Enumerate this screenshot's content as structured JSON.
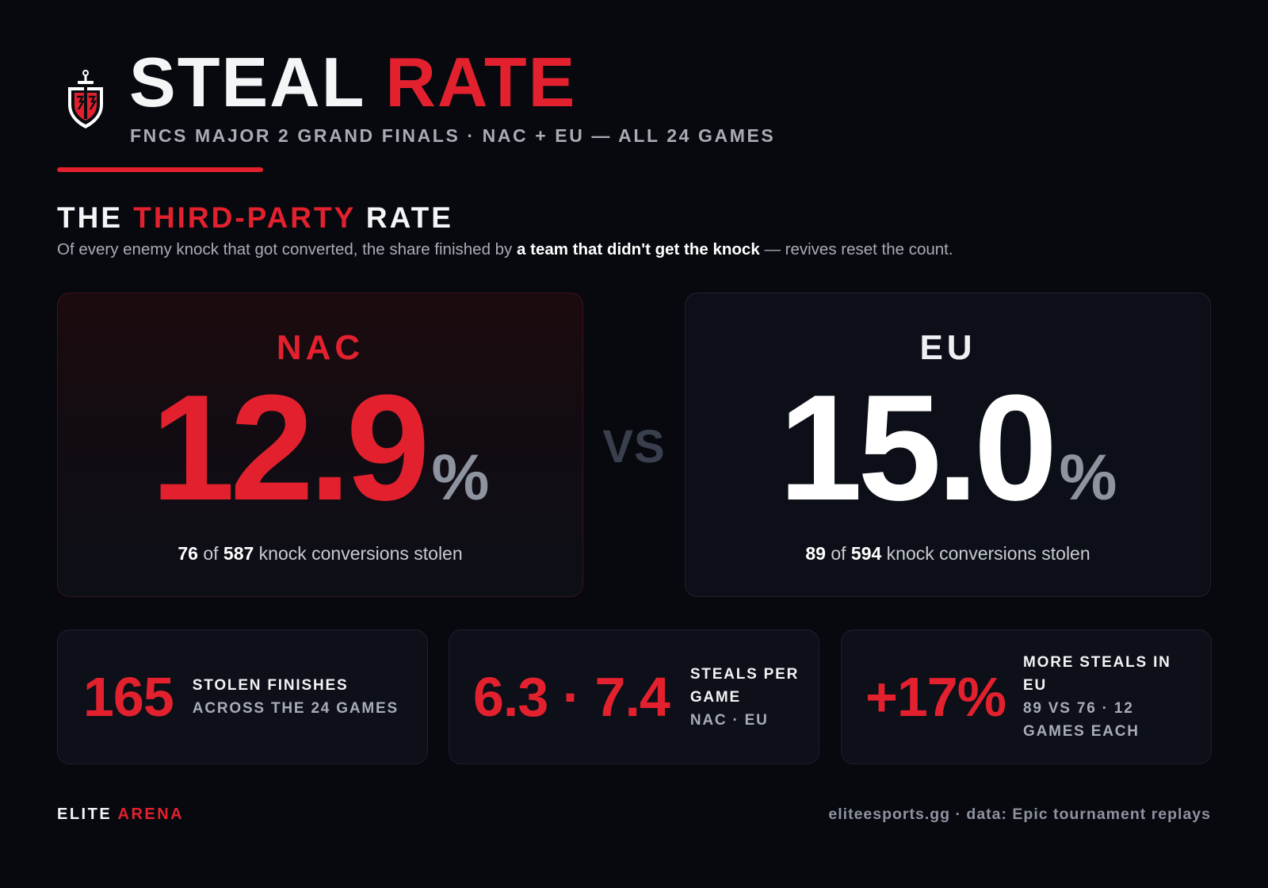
{
  "header": {
    "title_part1": "STEAL",
    "title_part2": "RATE",
    "subtitle": "FNCS MAJOR 2 GRAND FINALS · NAC + EU — ALL 24 GAMES"
  },
  "section": {
    "title_part1": "THE",
    "title_part2": "THIRD-PARTY",
    "title_part3": "RATE",
    "desc_before": "Of every enemy knock that got converted, the share finished by ",
    "desc_bold": "a team that didn't get the knock",
    "desc_after": " — revives reset the count."
  },
  "comparison": {
    "vs_label": "VS",
    "nac": {
      "region": "NAC",
      "rate": "12.9",
      "pct_sign": "%",
      "stolen": "76",
      "of_word": " of ",
      "total": "587",
      "note_suffix": " knock conversions stolen"
    },
    "eu": {
      "region": "EU",
      "rate": "15.0",
      "pct_sign": "%",
      "stolen": "89",
      "of_word": " of ",
      "total": "594",
      "note_suffix": " knock conversions stolen"
    }
  },
  "stats": [
    {
      "value": "165",
      "label_top": "STOLEN FINISHES",
      "label_bottom": "ACROSS THE 24 GAMES"
    },
    {
      "value": "6.3 · 7.4",
      "label_top": "STEALS PER GAME",
      "label_bottom": "NAC · EU"
    },
    {
      "value": "+17%",
      "label_top": "MORE STEALS IN EU",
      "label_bottom": "89 VS 76 · 12 GAMES EACH"
    }
  ],
  "footer": {
    "brand_part1": "ELITE",
    "brand_part2": "ARENA",
    "source": "eliteesports.gg · data: Epic tournament replays"
  },
  "colors": {
    "background": "#07090f",
    "accent_red": "#e3212e",
    "muted_text": "#a9acb5",
    "card_bg": "#0c0f17"
  },
  "icons": {
    "logo": "shield-sword-icon"
  }
}
